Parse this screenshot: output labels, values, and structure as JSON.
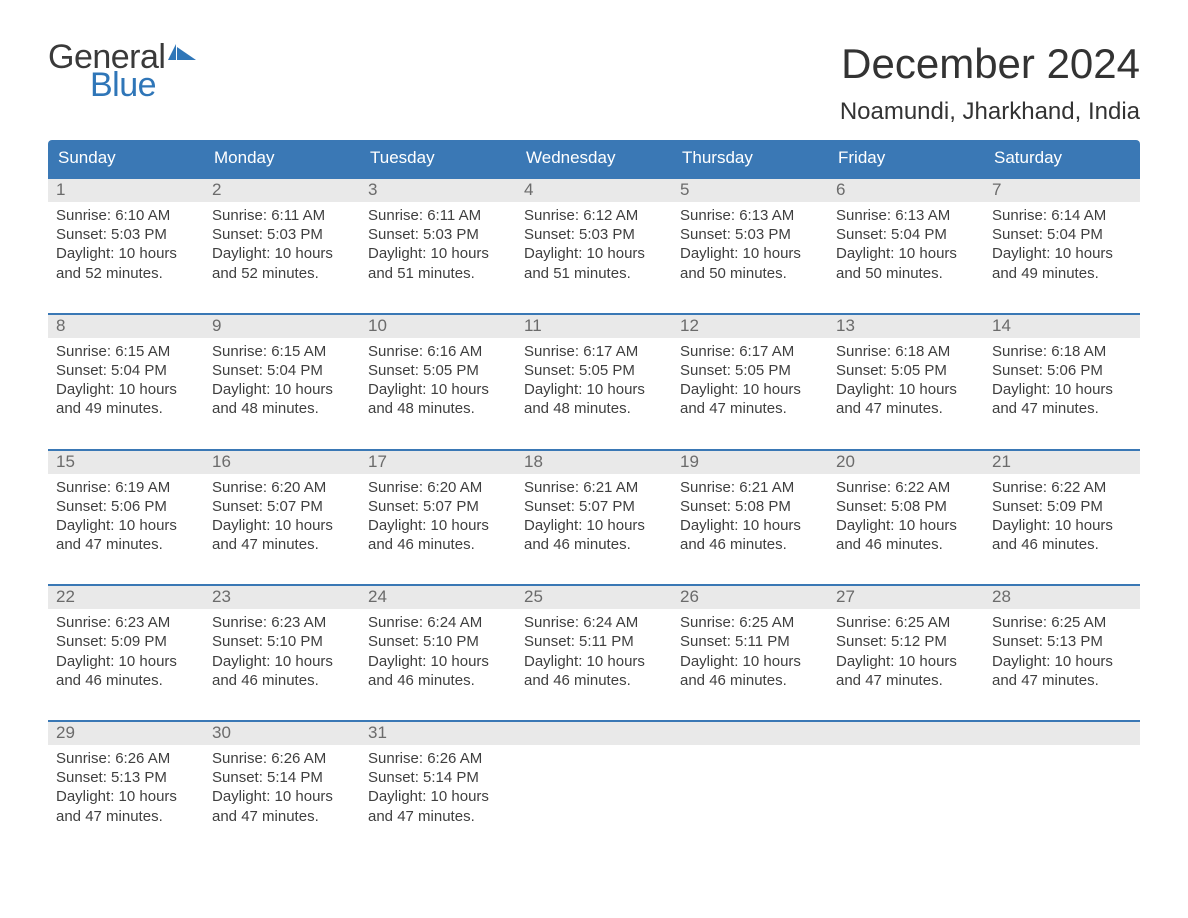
{
  "brand": {
    "line1": "General",
    "line2": "Blue",
    "flag_color": "#2f76b8",
    "text_gray": "#3a3a3a"
  },
  "title": "December 2024",
  "location": "Noamundi, Jharkhand, India",
  "colors": {
    "header_bg": "#3a78b5",
    "daynum_bg": "#e9e9e9",
    "daynum_fg": "#6b6b6b",
    "body_fg": "#3f3f3f",
    "page_bg": "#ffffff",
    "row_border": "#3a78b5"
  },
  "typography": {
    "title_fontsize": 42,
    "location_fontsize": 24,
    "dow_fontsize": 17,
    "daynum_fontsize": 17,
    "body_fontsize": 15
  },
  "dow": [
    "Sunday",
    "Monday",
    "Tuesday",
    "Wednesday",
    "Thursday",
    "Friday",
    "Saturday"
  ],
  "weeks": [
    [
      {
        "n": "1",
        "sunrise": "6:10 AM",
        "sunset": "5:03 PM",
        "daylight": "10 hours and 52 minutes."
      },
      {
        "n": "2",
        "sunrise": "6:11 AM",
        "sunset": "5:03 PM",
        "daylight": "10 hours and 52 minutes."
      },
      {
        "n": "3",
        "sunrise": "6:11 AM",
        "sunset": "5:03 PM",
        "daylight": "10 hours and 51 minutes."
      },
      {
        "n": "4",
        "sunrise": "6:12 AM",
        "sunset": "5:03 PM",
        "daylight": "10 hours and 51 minutes."
      },
      {
        "n": "5",
        "sunrise": "6:13 AM",
        "sunset": "5:03 PM",
        "daylight": "10 hours and 50 minutes."
      },
      {
        "n": "6",
        "sunrise": "6:13 AM",
        "sunset": "5:04 PM",
        "daylight": "10 hours and 50 minutes."
      },
      {
        "n": "7",
        "sunrise": "6:14 AM",
        "sunset": "5:04 PM",
        "daylight": "10 hours and 49 minutes."
      }
    ],
    [
      {
        "n": "8",
        "sunrise": "6:15 AM",
        "sunset": "5:04 PM",
        "daylight": "10 hours and 49 minutes."
      },
      {
        "n": "9",
        "sunrise": "6:15 AM",
        "sunset": "5:04 PM",
        "daylight": "10 hours and 48 minutes."
      },
      {
        "n": "10",
        "sunrise": "6:16 AM",
        "sunset": "5:05 PM",
        "daylight": "10 hours and 48 minutes."
      },
      {
        "n": "11",
        "sunrise": "6:17 AM",
        "sunset": "5:05 PM",
        "daylight": "10 hours and 48 minutes."
      },
      {
        "n": "12",
        "sunrise": "6:17 AM",
        "sunset": "5:05 PM",
        "daylight": "10 hours and 47 minutes."
      },
      {
        "n": "13",
        "sunrise": "6:18 AM",
        "sunset": "5:05 PM",
        "daylight": "10 hours and 47 minutes."
      },
      {
        "n": "14",
        "sunrise": "6:18 AM",
        "sunset": "5:06 PM",
        "daylight": "10 hours and 47 minutes."
      }
    ],
    [
      {
        "n": "15",
        "sunrise": "6:19 AM",
        "sunset": "5:06 PM",
        "daylight": "10 hours and 47 minutes."
      },
      {
        "n": "16",
        "sunrise": "6:20 AM",
        "sunset": "5:07 PM",
        "daylight": "10 hours and 47 minutes."
      },
      {
        "n": "17",
        "sunrise": "6:20 AM",
        "sunset": "5:07 PM",
        "daylight": "10 hours and 46 minutes."
      },
      {
        "n": "18",
        "sunrise": "6:21 AM",
        "sunset": "5:07 PM",
        "daylight": "10 hours and 46 minutes."
      },
      {
        "n": "19",
        "sunrise": "6:21 AM",
        "sunset": "5:08 PM",
        "daylight": "10 hours and 46 minutes."
      },
      {
        "n": "20",
        "sunrise": "6:22 AM",
        "sunset": "5:08 PM",
        "daylight": "10 hours and 46 minutes."
      },
      {
        "n": "21",
        "sunrise": "6:22 AM",
        "sunset": "5:09 PM",
        "daylight": "10 hours and 46 minutes."
      }
    ],
    [
      {
        "n": "22",
        "sunrise": "6:23 AM",
        "sunset": "5:09 PM",
        "daylight": "10 hours and 46 minutes."
      },
      {
        "n": "23",
        "sunrise": "6:23 AM",
        "sunset": "5:10 PM",
        "daylight": "10 hours and 46 minutes."
      },
      {
        "n": "24",
        "sunrise": "6:24 AM",
        "sunset": "5:10 PM",
        "daylight": "10 hours and 46 minutes."
      },
      {
        "n": "25",
        "sunrise": "6:24 AM",
        "sunset": "5:11 PM",
        "daylight": "10 hours and 46 minutes."
      },
      {
        "n": "26",
        "sunrise": "6:25 AM",
        "sunset": "5:11 PM",
        "daylight": "10 hours and 46 minutes."
      },
      {
        "n": "27",
        "sunrise": "6:25 AM",
        "sunset": "5:12 PM",
        "daylight": "10 hours and 47 minutes."
      },
      {
        "n": "28",
        "sunrise": "6:25 AM",
        "sunset": "5:13 PM",
        "daylight": "10 hours and 47 minutes."
      }
    ],
    [
      {
        "n": "29",
        "sunrise": "6:26 AM",
        "sunset": "5:13 PM",
        "daylight": "10 hours and 47 minutes."
      },
      {
        "n": "30",
        "sunrise": "6:26 AM",
        "sunset": "5:14 PM",
        "daylight": "10 hours and 47 minutes."
      },
      {
        "n": "31",
        "sunrise": "6:26 AM",
        "sunset": "5:14 PM",
        "daylight": "10 hours and 47 minutes."
      },
      null,
      null,
      null,
      null
    ]
  ],
  "labels": {
    "sunrise": "Sunrise:",
    "sunset": "Sunset:",
    "daylight": "Daylight:"
  }
}
